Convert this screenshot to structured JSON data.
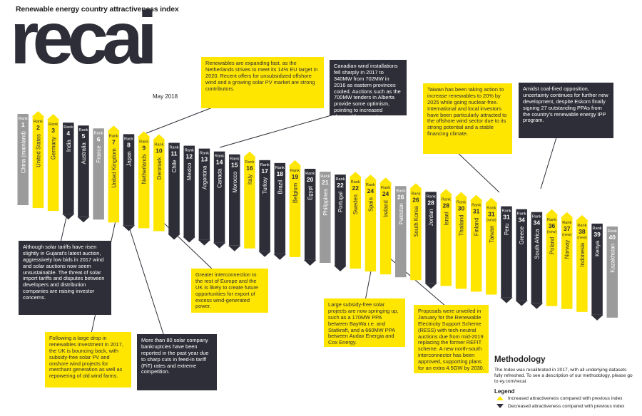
{
  "header": {
    "title": "Renewable energy country attractiveness index",
    "brand": "recai",
    "date": "May 2018"
  },
  "colors": {
    "increase": "#ffe600",
    "decrease": "#2e2e38",
    "unchanged": "#9b9b9b",
    "text": "#2e2e38"
  },
  "chart_data": {
    "type": "bar",
    "rank_label": "Rank",
    "categories": [
      "China (mainland)",
      "United States",
      "Germany",
      "India",
      "Australia",
      "France",
      "United Kingdom",
      "Japan",
      "Netherlands",
      "Denmark",
      "Chile",
      "Mexico",
      "Argentina",
      "Canada",
      "Morocco",
      "Italy",
      "Turkey",
      "Brazil",
      "Belgium",
      "Egypt",
      "Philippines",
      "Portugal",
      "Sweden",
      "Spain",
      "Ireland",
      "Pakistan",
      "South Korea",
      "Jordan",
      "Israel",
      "Thailand",
      "Finland",
      "Taiwan",
      "Peru",
      "Greece",
      "South Africa",
      "Poland",
      "Norway",
      "Indonesia",
      "Kenya",
      "Kazakhstan"
    ],
    "ranks": [
      1,
      2,
      3,
      4,
      5,
      6,
      7,
      8,
      9,
      10,
      11,
      12,
      13,
      14,
      15,
      16,
      17,
      18,
      19,
      20,
      21,
      22,
      22,
      24,
      24,
      26,
      26,
      28,
      28,
      30,
      31,
      31,
      31,
      34,
      34,
      36,
      37,
      38,
      39,
      40
    ],
    "rank_notes": [
      "",
      "",
      "",
      "",
      "",
      "",
      "",
      "",
      "",
      "",
      "",
      "",
      "",
      "",
      "",
      "",
      "",
      "",
      "",
      "",
      "",
      "",
      "",
      "",
      "",
      "",
      "",
      "",
      "",
      "",
      "",
      "(new)",
      "",
      "",
      "",
      "(new)",
      "(new)",
      "(new)",
      "",
      ""
    ],
    "movement": [
      "none",
      "up",
      "up",
      "down",
      "down",
      "none",
      "up",
      "down",
      "up",
      "up",
      "down",
      "down",
      "down",
      "down",
      "down",
      "up",
      "down",
      "down",
      "up",
      "down",
      "none",
      "down",
      "up",
      "up",
      "up",
      "none",
      "up",
      "down",
      "up",
      "up",
      "up",
      "up",
      "down",
      "down",
      "down",
      "up",
      "up",
      "up",
      "down",
      "none"
    ]
  },
  "callouts": {
    "netherlands": "Renewables are expanding fast, as the Netherlands strives to meet its 14% EU target in 2020. Recent offers for unsubsidized offshore wind and a growing solar PV market are strong contributors.",
    "canada": "Canadian wind installations fell sharply in 2017 to 340MW from 702MW in 2016 as eastern provinces cooled. Auctions such as the 700MW tenders in Alberta provide some optimism, pointing to increased demand from western Canada.",
    "taiwan": "Taiwan has been taking action to increase renewables to 20% by 2025 while going nuclear-free. International and local investors have been particularly attracted to the offshore wind sector due to its strong potential and a stable financing climate.",
    "south_africa": "Amidst coal-fired opposition, uncertainty continues for further new development, despite Eskom finally signing 27 outstanding PPAs from the country's renewable energy IPP program.",
    "india": "Although solar tariffs have risen slightly in Gujarat's latest auction, aggressively low bids in 2017 wind and solar auctions now seem unsustainable. The threat of solar import tariffs and disputes between developers and distribution companies are raising investor concerns.",
    "denmark": "Greater interconnection to the rest of Europe and the UK is likely to create future opportunities for export of excess wind-generated power.",
    "uk": "Following a large drop in renewables investment in 2017, the UK is bouncing back, with subsidy-free solar PV and onshore wind projects for merchant generation as well as repowering of old wind farms.",
    "japan": "More than 80 solar company bankruptcies have been reported in the past year due to sharp cuts in feed-in tariff (FiT) rates and extreme competition.",
    "spain": "Large subsidy-free solar projects are now springing up, such as a 170MW PPA between BayWa r.e. and Statkraft, and a 660MW PPA between Audax Energia and Cox Energy.",
    "ireland": "Proposals were unveiled in January for the Renewable Electricity Support Scheme (RESS) with tech-neutral auctions due from mid-2019 replacing the former REFIT scheme. A new north-south interconnector has been approved, supporting plans for an extra 4.5GW by 2030."
  },
  "methodology": {
    "title": "Methodology",
    "text": "The Index was recalibrated in 2017, with all underlying datasets fully refreshed. To see a description of our methodology, please go to ey.com/recai."
  },
  "legend": {
    "title": "Legend",
    "increase": "Increased attractiveness compared with previous index",
    "decrease": "Decreased attractiveness compared with previous index"
  }
}
